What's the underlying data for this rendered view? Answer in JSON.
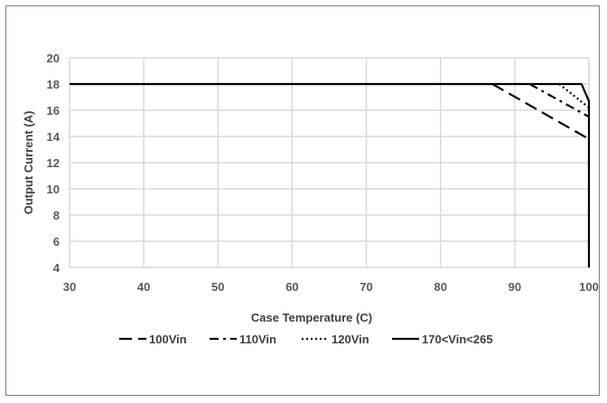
{
  "chart_data": {
    "type": "line",
    "title": "",
    "xlabel": "Case Temperature (C)",
    "ylabel": "Output Current (A)",
    "xlim": [
      30,
      100
    ],
    "ylim": [
      4,
      20
    ],
    "xticks": [
      30,
      40,
      50,
      60,
      70,
      80,
      90,
      100
    ],
    "yticks": [
      4,
      6,
      8,
      10,
      12,
      14,
      16,
      18,
      20
    ],
    "grid": true,
    "legend_position": "bottom",
    "series": [
      {
        "name": "100Vin",
        "style": "dash",
        "color": "#000000",
        "points": [
          [
            87,
            18
          ],
          [
            100,
            13.8
          ]
        ]
      },
      {
        "name": "110Vin",
        "style": "dashdot",
        "color": "#000000",
        "points": [
          [
            92,
            18
          ],
          [
            100,
            15.5
          ]
        ]
      },
      {
        "name": "120Vin",
        "style": "dot",
        "color": "#000000",
        "points": [
          [
            96,
            18
          ],
          [
            100,
            16.2
          ]
        ]
      },
      {
        "name": "170<Vin<265",
        "style": "solid",
        "color": "#000000",
        "points": [
          [
            30,
            18
          ],
          [
            99,
            18
          ],
          [
            100,
            16.7
          ],
          [
            100,
            4
          ]
        ]
      }
    ]
  }
}
